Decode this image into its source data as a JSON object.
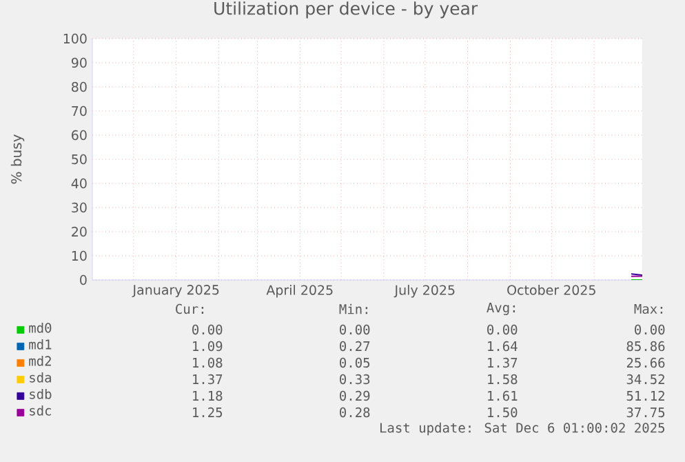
{
  "chart_data": {
    "type": "line",
    "title": "Utilization per device - by year",
    "ylabel": "% busy",
    "xlim": [
      "2024-11-01",
      "2025-12-06"
    ],
    "ylim": [
      0,
      100
    ],
    "yticks": [
      0,
      10,
      20,
      30,
      40,
      50,
      60,
      70,
      80,
      90,
      100
    ],
    "xticks": [
      {
        "value": "2024-12-01",
        "label": null
      },
      {
        "value": "2025-01-01",
        "label": "January 2025"
      },
      {
        "value": "2025-02-01",
        "label": null
      },
      {
        "value": "2025-03-01",
        "label": null
      },
      {
        "value": "2025-04-01",
        "label": "April 2025"
      },
      {
        "value": "2025-05-01",
        "label": null
      },
      {
        "value": "2025-06-01",
        "label": null
      },
      {
        "value": "2025-07-01",
        "label": "July 2025"
      },
      {
        "value": "2025-08-01",
        "label": null
      },
      {
        "value": "2025-09-01",
        "label": null
      },
      {
        "value": "2025-10-01",
        "label": "October 2025"
      },
      {
        "value": "2025-11-01",
        "label": null
      }
    ],
    "grid": true,
    "legend": "bottom",
    "marker": "none",
    "line_style": "solid",
    "series": [
      {
        "name": "md0",
        "color": "#00cc00",
        "x": [
          "2025-11-28",
          "2025-12-06"
        ],
        "values": [
          0,
          0
        ]
      },
      {
        "name": "md1",
        "color": "#0066b3",
        "values": [
          null
        ]
      },
      {
        "name": "md2",
        "color": "#ff8000",
        "values": [
          null
        ]
      },
      {
        "name": "sda",
        "color": "#ffcc00",
        "values": [
          null
        ]
      },
      {
        "name": "sdb",
        "color": "#330099",
        "x": [
          "2025-11-28",
          "2025-12-06"
        ],
        "values": [
          2.5,
          2
        ]
      },
      {
        "name": "sdc",
        "color": "#990099",
        "x": [
          "2025-11-28",
          "2025-12-06"
        ],
        "values": [
          1.5,
          1.6
        ]
      }
    ],
    "annotations": [
      "Cur:",
      "Min:",
      "Avg:",
      "Max:",
      "0.00",
      "0.00",
      "0.00",
      "0.00",
      "1.09",
      "0.27",
      "1.64",
      "85.86",
      "1.08",
      "0.05",
      "1.37",
      "25.66",
      "1.37",
      "0.33",
      "1.58",
      "34.52",
      "1.18",
      "0.29",
      "1.61",
      "51.12",
      "1.25",
      "0.28",
      "1.50",
      "37.75",
      "Last update: Sat Dec  6 01:00:02 2025"
    ]
  }
}
